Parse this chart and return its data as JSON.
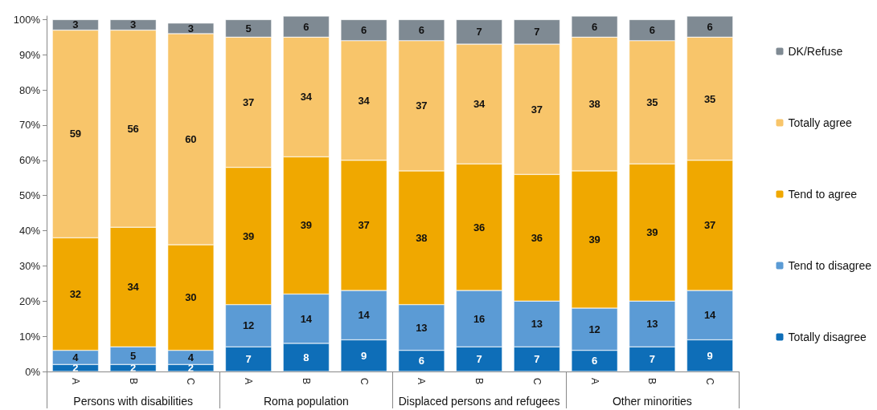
{
  "chart_data": {
    "type": "bar",
    "stacked": true,
    "data_labels": true,
    "legend": "right",
    "grid": false,
    "categories": [
      "A",
      "B",
      "C",
      "A",
      "B",
      "C",
      "A",
      "B",
      "C",
      "A",
      "B",
      "C"
    ],
    "ylim": [
      0,
      101
    ],
    "yticks": [
      {
        "value": 0,
        "label": "0%"
      },
      {
        "value": 10,
        "label": "10%"
      },
      {
        "value": 20,
        "label": "20%"
      },
      {
        "value": 30,
        "label": "30%"
      },
      {
        "value": 40,
        "label": "40%"
      },
      {
        "value": 50,
        "label": "50%"
      },
      {
        "value": 60,
        "label": "60%"
      },
      {
        "value": 70,
        "label": "70%"
      },
      {
        "value": 80,
        "label": "80%"
      },
      {
        "value": 90,
        "label": "90%"
      },
      {
        "value": 100,
        "label": "100%"
      }
    ],
    "series": [
      {
        "name": "Totally disagree",
        "color": "#0e6eb8",
        "values": [
          2,
          2,
          2,
          7,
          8,
          9,
          6,
          7,
          7,
          6,
          7,
          9
        ]
      },
      {
        "name": "Tend to disagree",
        "color": "#5b9bd5",
        "values": [
          4,
          5,
          4,
          12,
          14,
          14,
          13,
          16,
          13,
          12,
          13,
          14
        ]
      },
      {
        "name": "Tend to agree",
        "color": "#f0a800",
        "values": [
          32,
          34,
          30,
          39,
          39,
          37,
          38,
          36,
          36,
          39,
          39,
          37
        ]
      },
      {
        "name": "Totally agree",
        "color": "#f8c56a",
        "values": [
          59,
          56,
          60,
          37,
          34,
          34,
          37,
          34,
          37,
          38,
          35,
          35
        ]
      },
      {
        "name": "DK/Refuse",
        "color": "#7f8a93",
        "values": [
          3,
          3,
          3,
          5,
          6,
          6,
          6,
          7,
          7,
          6,
          6,
          6
        ]
      }
    ],
    "annotations": [
      "Persons with disabilities",
      "Roma population",
      "Displaced persons and refugees",
      "Other minorities"
    ]
  }
}
